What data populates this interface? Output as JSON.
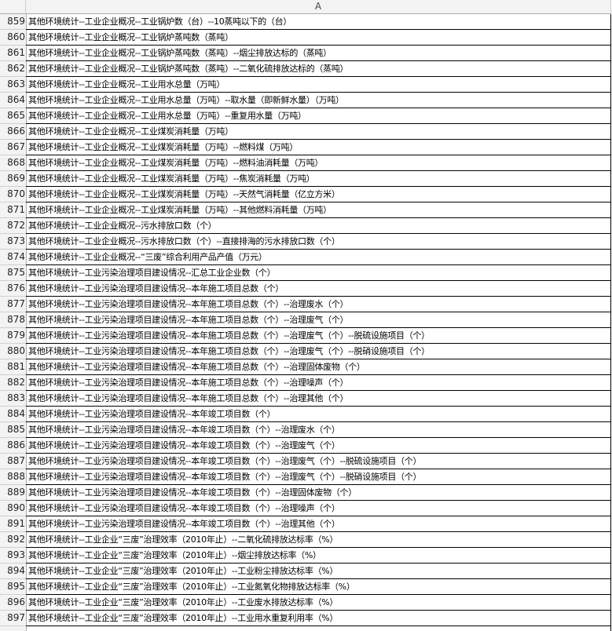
{
  "column_header": "A",
  "rows": [
    [
      "859",
      "其他环境统计--工业企业概况--工业锅炉数（台）--10蒸吨以下的（台）"
    ],
    [
      "860",
      "其他环境统计--工业企业概况--工业锅炉蒸吨数（蒸吨）"
    ],
    [
      "861",
      "其他环境统计--工业企业概况--工业锅炉蒸吨数（蒸吨）--烟尘排放达标的（蒸吨）"
    ],
    [
      "862",
      "其他环境统计--工业企业概况--工业锅炉蒸吨数（蒸吨）--二氧化硫排放达标的（蒸吨）"
    ],
    [
      "863",
      "其他环境统计--工业企业概况--工业用水总量（万吨）"
    ],
    [
      "864",
      "其他环境统计--工业企业概况--工业用水总量（万吨）--取水量（即新鲜水量）（万吨）"
    ],
    [
      "865",
      "其他环境统计--工业企业概况--工业用水总量（万吨）--重复用水量（万吨）"
    ],
    [
      "866",
      "其他环境统计--工业企业概况--工业煤炭消耗量（万吨）"
    ],
    [
      "867",
      "其他环境统计--工业企业概况--工业煤炭消耗量（万吨）--燃料煤（万吨）"
    ],
    [
      "868",
      "其他环境统计--工业企业概况--工业煤炭消耗量（万吨）--燃料油消耗量（万吨）"
    ],
    [
      "869",
      "其他环境统计--工业企业概况--工业煤炭消耗量（万吨）--焦炭消耗量（万吨）"
    ],
    [
      "870",
      "其他环境统计--工业企业概况--工业煤炭消耗量（万吨）--天然气消耗量（亿立方米）"
    ],
    [
      "871",
      "其他环境统计--工业企业概况--工业煤炭消耗量（万吨）--其他燃料消耗量（万吨）"
    ],
    [
      "872",
      "其他环境统计--工业企业概况--污水排放口数（个）"
    ],
    [
      "873",
      "其他环境统计--工业企业概况--污水排放口数（个）--直接排海的污水排放口数（个）"
    ],
    [
      "874",
      "其他环境统计--工业企业概况--“三废”综合利用产品产值（万元）"
    ],
    [
      "875",
      "其他环境统计--工业污染治理项目建设情况--汇总工业企业数（个）"
    ],
    [
      "876",
      "其他环境统计--工业污染治理项目建设情况--本年施工项目总数（个）"
    ],
    [
      "877",
      "其他环境统计--工业污染治理项目建设情况--本年施工项目总数（个）--治理废水（个）"
    ],
    [
      "878",
      "其他环境统计--工业污染治理项目建设情况--本年施工项目总数（个）--治理废气（个）"
    ],
    [
      "879",
      "其他环境统计--工业污染治理项目建设情况--本年施工项目总数（个）--治理废气（个）--脱硫设施项目（个）"
    ],
    [
      "880",
      "其他环境统计--工业污染治理项目建设情况--本年施工项目总数（个）--治理废气（个）--脱硝设施项目（个）"
    ],
    [
      "881",
      "其他环境统计--工业污染治理项目建设情况--本年施工项目总数（个）--治理固体废物（个）"
    ],
    [
      "882",
      "其他环境统计--工业污染治理项目建设情况--本年施工项目总数（个）--治理噪声（个）"
    ],
    [
      "883",
      "其他环境统计--工业污染治理项目建设情况--本年施工项目总数（个）--治理其他（个）"
    ],
    [
      "884",
      "其他环境统计--工业污染治理项目建设情况--本年竣工项目数（个）"
    ],
    [
      "885",
      "其他环境统计--工业污染治理项目建设情况--本年竣工项目数（个）--治理废水（个）"
    ],
    [
      "886",
      "其他环境统计--工业污染治理项目建设情况--本年竣工项目数（个）--治理废气（个）"
    ],
    [
      "887",
      "其他环境统计--工业污染治理项目建设情况--本年竣工项目数（个）--治理废气（个）--脱硫设施项目（个）"
    ],
    [
      "888",
      "其他环境统计--工业污染治理项目建设情况--本年竣工项目数（个）--治理废气（个）--脱硝设施项目（个）"
    ],
    [
      "889",
      "其他环境统计--工业污染治理项目建设情况--本年竣工项目数（个）--治理固体废物（个）"
    ],
    [
      "890",
      "其他环境统计--工业污染治理项目建设情况--本年竣工项目数（个）--治理噪声（个）"
    ],
    [
      "891",
      "其他环境统计--工业污染治理项目建设情况--本年竣工项目数（个）--治理其他（个）"
    ],
    [
      "892",
      "其他环境统计--工业企业“三废”治理效率（2010年止）--二氧化硫排放达标率（%）"
    ],
    [
      "893",
      "其他环境统计--工业企业“三废”治理效率（2010年止）--烟尘排放达标率（%）"
    ],
    [
      "894",
      "其他环境统计--工业企业“三废”治理效率（2010年止）--工业粉尘排放达标率（%）"
    ],
    [
      "895",
      "其他环境统计--工业企业“三废”治理效率（2010年止）--工业氮氧化物排放达标率（%）"
    ],
    [
      "896",
      "其他环境统计--工业企业“三废”治理效率（2010年止）--工业废水排放达标率（%）"
    ],
    [
      "897",
      "其他环境统计--工业企业“三废”治理效率（2010年止）--工业用水重复利用率（%）"
    ]
  ]
}
